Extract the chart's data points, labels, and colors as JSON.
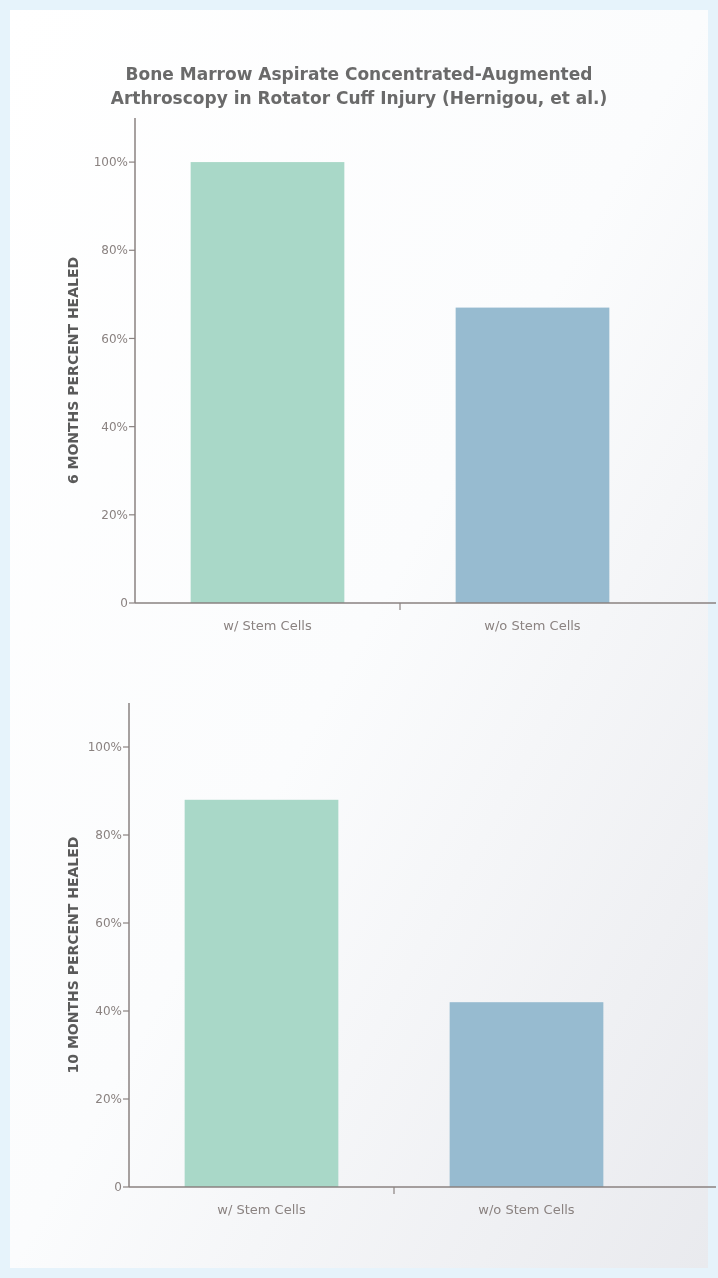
{
  "chart_data": [
    {
      "type": "bar",
      "title": "Bone Marrow Aspirate Concentrated-Augmented\nArthroscopy in Rotator Cuff Injury (Hernigou, et al.)",
      "ylabel": "6 MONTHS PERCENT HEALED",
      "categories": [
        "w/ Stem Cells",
        "w/o Stem Cells"
      ],
      "values": [
        100,
        67
      ],
      "colors": [
        "#a9d8c8",
        "#97bbd0"
      ],
      "ylim": [
        0,
        110
      ],
      "yticks": [
        {
          "value": 0,
          "label": "0"
        },
        {
          "value": 20,
          "label": "20%"
        },
        {
          "value": 40,
          "label": "40%"
        },
        {
          "value": 60,
          "label": "60%"
        },
        {
          "value": 80,
          "label": "80%"
        },
        {
          "value": 100,
          "label": "100%"
        }
      ]
    },
    {
      "type": "bar",
      "ylabel": "10 MONTHS PERCENT HEALED",
      "categories": [
        "w/ Stem Cells",
        "w/o Stem Cells"
      ],
      "values": [
        88,
        42
      ],
      "colors": [
        "#a9d8c8",
        "#97bbd0"
      ],
      "ylim": [
        0,
        110
      ],
      "yticks": [
        {
          "value": 0,
          "label": "0"
        },
        {
          "value": 20,
          "label": "20%"
        },
        {
          "value": 40,
          "label": "40%"
        },
        {
          "value": 60,
          "label": "60%"
        },
        {
          "value": 80,
          "label": "80%"
        },
        {
          "value": 100,
          "label": "100%"
        }
      ]
    }
  ]
}
